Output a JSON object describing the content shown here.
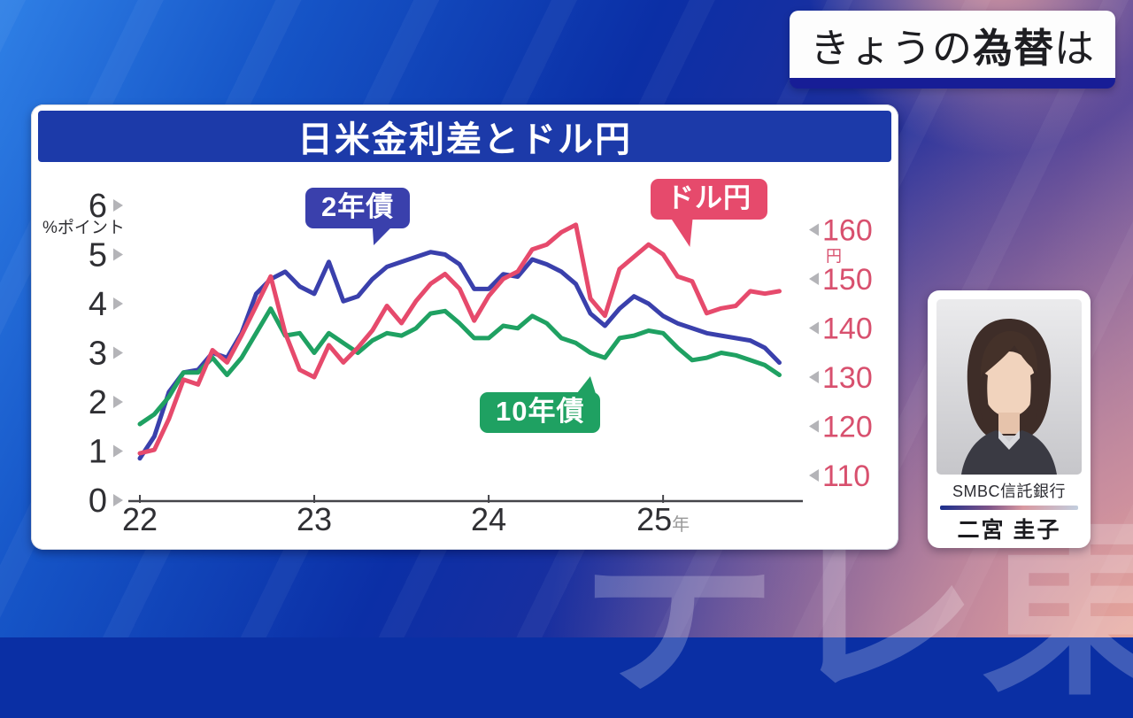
{
  "header": {
    "prefix": "きょうの",
    "em": "為替",
    "suffix": "は"
  },
  "watermark": "テレ東",
  "analyst": {
    "org": "SMBC信託銀行",
    "name": "二宮 圭子"
  },
  "colors": {
    "title_bar": "#1c3aa9",
    "header_underline": "#171d96",
    "axis_text": "#2f2f33",
    "tick_triangle": "#b4b4b8",
    "right_axis_text": "#d8506e",
    "x_year_suffix": "#999999"
  },
  "chart_data": {
    "type": "line",
    "title": "日米金利差とドル円",
    "x_start": "2022-01",
    "x_step": "month",
    "x_ticks": [
      {
        "m": 0,
        "label": "22",
        "suffix": ""
      },
      {
        "m": 12,
        "label": "23",
        "suffix": ""
      },
      {
        "m": 24,
        "label": "24",
        "suffix": ""
      },
      {
        "m": 36,
        "label": "25",
        "suffix": "年"
      }
    ],
    "left_axis": {
      "label": "%ポイント",
      "range": [
        0,
        6
      ],
      "ticks": [
        6,
        5,
        4,
        3,
        2,
        1,
        0
      ]
    },
    "right_axis": {
      "label": "円",
      "range": [
        110,
        160
      ],
      "ticks": [
        160,
        150,
        140,
        130,
        120,
        110
      ]
    },
    "grid": false,
    "series": [
      {
        "key": "2y",
        "name": "2年債",
        "axis": "left",
        "color": "#3a40ac",
        "values": [
          0.85,
          1.3,
          2.2,
          2.6,
          2.65,
          3.0,
          2.9,
          3.4,
          4.2,
          4.5,
          4.65,
          4.35,
          4.2,
          4.85,
          4.05,
          4.15,
          4.5,
          4.75,
          4.85,
          4.95,
          5.05,
          5.0,
          4.8,
          4.3,
          4.3,
          4.6,
          4.55,
          4.9,
          4.8,
          4.65,
          4.4,
          3.8,
          3.55,
          3.9,
          4.15,
          4.0,
          3.75,
          3.6,
          3.5,
          3.4,
          3.35,
          3.3,
          3.25,
          3.1,
          2.8
        ]
      },
      {
        "key": "10y",
        "name": "10年債",
        "axis": "left",
        "color": "#1fa162",
        "values": [
          1.55,
          1.75,
          2.1,
          2.6,
          2.6,
          2.9,
          2.55,
          2.9,
          3.4,
          3.9,
          3.35,
          3.4,
          3.0,
          3.4,
          3.2,
          3.0,
          3.25,
          3.4,
          3.35,
          3.5,
          3.8,
          3.85,
          3.6,
          3.3,
          3.3,
          3.55,
          3.5,
          3.75,
          3.6,
          3.3,
          3.2,
          3.0,
          2.9,
          3.3,
          3.35,
          3.45,
          3.4,
          3.1,
          2.85,
          2.9,
          3.0,
          2.95,
          2.85,
          2.75,
          2.55
        ]
      },
      {
        "key": "usdjpy",
        "name": "ドル円",
        "axis": "right",
        "color": "#e64a6c",
        "values": [
          114.5,
          115.2,
          121.5,
          129.5,
          128.5,
          135.5,
          133.0,
          138.5,
          144.5,
          150.5,
          139.0,
          131.5,
          130.0,
          136.5,
          133.0,
          136.0,
          139.5,
          144.5,
          141.0,
          145.5,
          149.0,
          151.0,
          148.0,
          141.5,
          146.5,
          150.0,
          151.5,
          156.0,
          157.0,
          159.5,
          161.0,
          146.0,
          142.5,
          152.0,
          154.5,
          157.0,
          155.0,
          150.5,
          149.5,
          143.0,
          144.0,
          144.5,
          147.5,
          147.0,
          147.5
        ]
      }
    ]
  }
}
